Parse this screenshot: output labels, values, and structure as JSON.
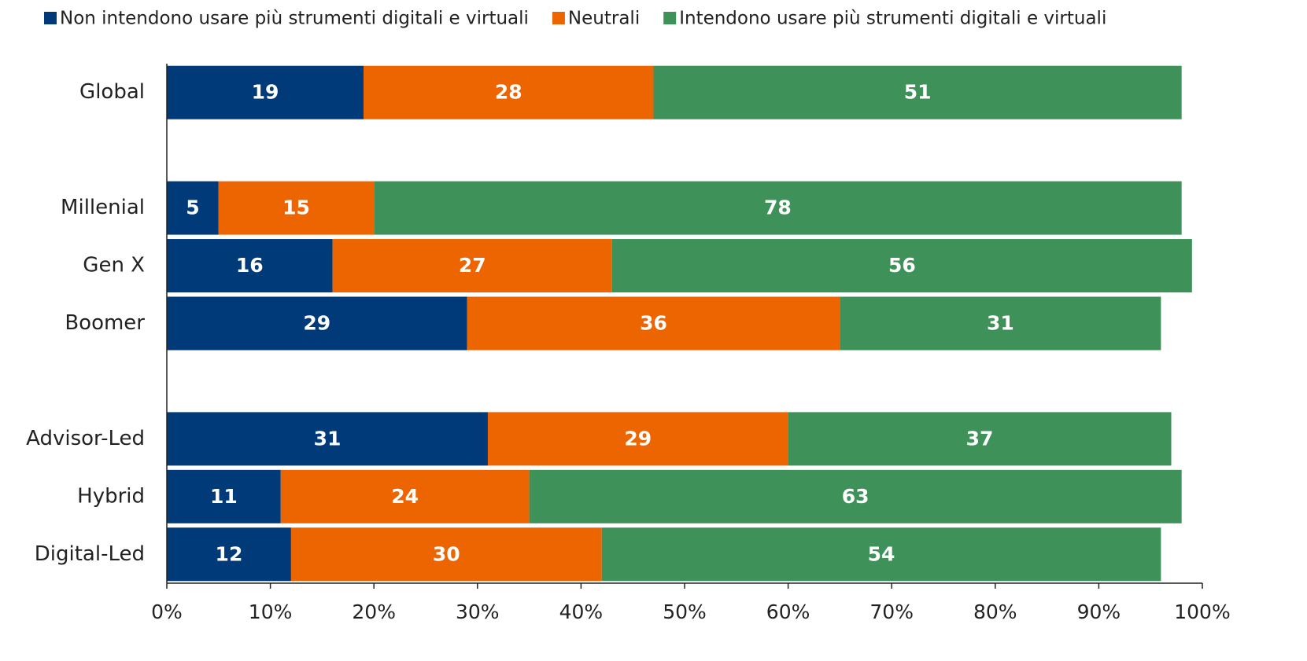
{
  "chart_data": {
    "type": "stacked_barh",
    "categories": [
      "Global",
      null,
      "Millenial",
      "Gen X",
      "Boomer",
      null,
      "Advisor-Led",
      "Hybrid",
      "Digital-Led"
    ],
    "series": [
      {
        "name": "Non intendono usare più strumenti digitali e virtuali",
        "color": "#003a78",
        "values": [
          19,
          null,
          5,
          16,
          29,
          null,
          31,
          11,
          12
        ]
      },
      {
        "name": "Neutrali",
        "color": "#ec6500",
        "values": [
          28,
          null,
          15,
          27,
          36,
          null,
          29,
          24,
          30
        ]
      },
      {
        "name": "Intendono usare più strumenti digitali e virtuali",
        "color": "#3f915a",
        "values": [
          51,
          null,
          78,
          56,
          31,
          null,
          37,
          63,
          54
        ]
      }
    ],
    "xlim": [
      0,
      100
    ],
    "xticks": [
      {
        "value": 0,
        "label": "0%"
      },
      {
        "value": 10,
        "label": "10%"
      },
      {
        "value": 20,
        "label": "20%"
      },
      {
        "value": 30,
        "label": "30%"
      },
      {
        "value": 40,
        "label": "40%"
      },
      {
        "value": 50,
        "label": "50%"
      },
      {
        "value": 60,
        "label": "60%"
      },
      {
        "value": 70,
        "label": "70%"
      },
      {
        "value": 80,
        "label": "80%"
      },
      {
        "value": 90,
        "label": "90%"
      },
      {
        "value": 100,
        "label": "100%"
      }
    ],
    "legend": "top"
  }
}
